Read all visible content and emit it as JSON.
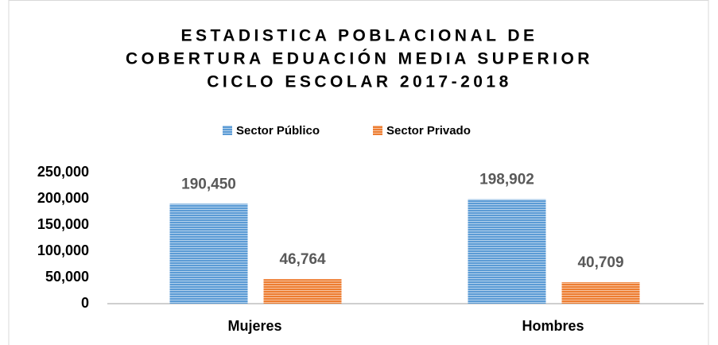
{
  "chart_data": {
    "type": "bar",
    "title": [
      "ESTADISTICA POBLACIONAL DE",
      "COBERTURA EDUACIÓN MEDIA SUPERIOR",
      "CICLO ESCOLAR 2017-2018"
    ],
    "categories": [
      "Mujeres",
      "Hombres"
    ],
    "series": [
      {
        "name": "Sector Público",
        "color": "#5b9bd5",
        "values": [
          190450,
          198902
        ],
        "value_labels": [
          "190,450",
          "198,902"
        ]
      },
      {
        "name": "Sector Privado",
        "color": "#ed7d31",
        "values": [
          46764,
          40709
        ],
        "value_labels": [
          "46,764",
          "40,709"
        ]
      }
    ],
    "ylim": [
      0,
      250000
    ],
    "yticks": [
      0,
      {
        "value": 50000,
        "label": "50,000"
      },
      {
        "value": 100000,
        "label": "100,000"
      },
      {
        "value": 150000,
        "label": "150,000"
      },
      {
        "value": 200000,
        "label": "200,000"
      },
      {
        "value": 250000,
        "label": "250,000"
      }
    ],
    "grid": false,
    "legend": "top"
  }
}
